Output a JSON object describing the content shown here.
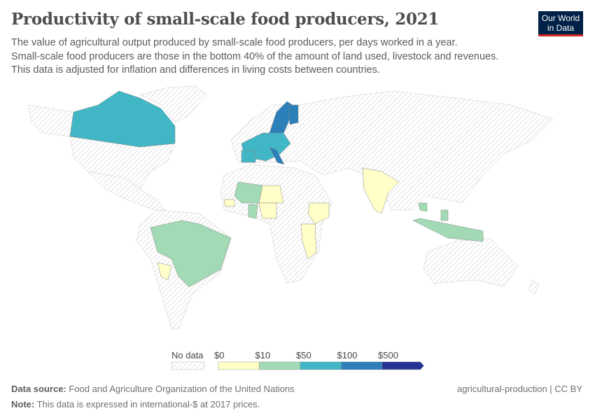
{
  "header": {
    "title": "Productivity of small-scale food producers, 2021",
    "subtitle": [
      "The value of agricultural output produced by small-scale food producers, per days worked in a year.",
      "Small-scale food producers are those in the bottom 40% of the amount of land used, livestock and revenues.",
      "This data is adjusted for inflation and differences in living costs between countries."
    ],
    "logo_text": [
      "Our World",
      "in Data"
    ]
  },
  "chart_data": {
    "type": "choropleth",
    "title": "Productivity of small-scale food producers, 2021",
    "year": 2021,
    "legend": {
      "no_data_label": "No data",
      "no_data_color": "#e0e0e0",
      "tick_labels": [
        "$0",
        "$10",
        "$50",
        "$100",
        "$500"
      ],
      "bins": [
        {
          "range": "$0–$10",
          "color": "#ffffc7"
        },
        {
          "range": "$10–$50",
          "color": "#a1dab4"
        },
        {
          "range": "$50–$100",
          "color": "#41b6c4"
        },
        {
          "range": "$100–$500",
          "color": "#2c7fb8"
        },
        {
          "range": ">$500",
          "color": "#253494"
        }
      ]
    },
    "countries": [
      {
        "name": "Canada",
        "bin": 2
      },
      {
        "name": "Sweden",
        "bin": 3
      },
      {
        "name": "Finland",
        "bin": 3
      },
      {
        "name": "Western/Central Europe",
        "bin": 2
      },
      {
        "name": "Italy",
        "bin": 3
      },
      {
        "name": "Spain",
        "bin": 2
      },
      {
        "name": "Mali",
        "bin": 1
      },
      {
        "name": "Niger",
        "bin": 0
      },
      {
        "name": "Nigeria",
        "bin": 0
      },
      {
        "name": "Ghana",
        "bin": 1
      },
      {
        "name": "Senegal",
        "bin": 0
      },
      {
        "name": "Ethiopia",
        "bin": 0
      },
      {
        "name": "Tanzania",
        "bin": 0
      },
      {
        "name": "India",
        "bin": 0
      },
      {
        "name": "Vietnam",
        "bin": 1
      },
      {
        "name": "Indonesia",
        "bin": 1
      },
      {
        "name": "Philippines",
        "bin": 1
      },
      {
        "name": "Brazil",
        "bin": 1
      },
      {
        "name": "Paraguay",
        "bin": 0
      }
    ]
  },
  "footer": {
    "source_label": "Data source:",
    "source": "Food and Agriculture Organization of the United Nations",
    "license": "agricultural-production | CC BY",
    "note_label": "Note:",
    "note": "This data is expressed in international-$ at 2017 prices."
  }
}
